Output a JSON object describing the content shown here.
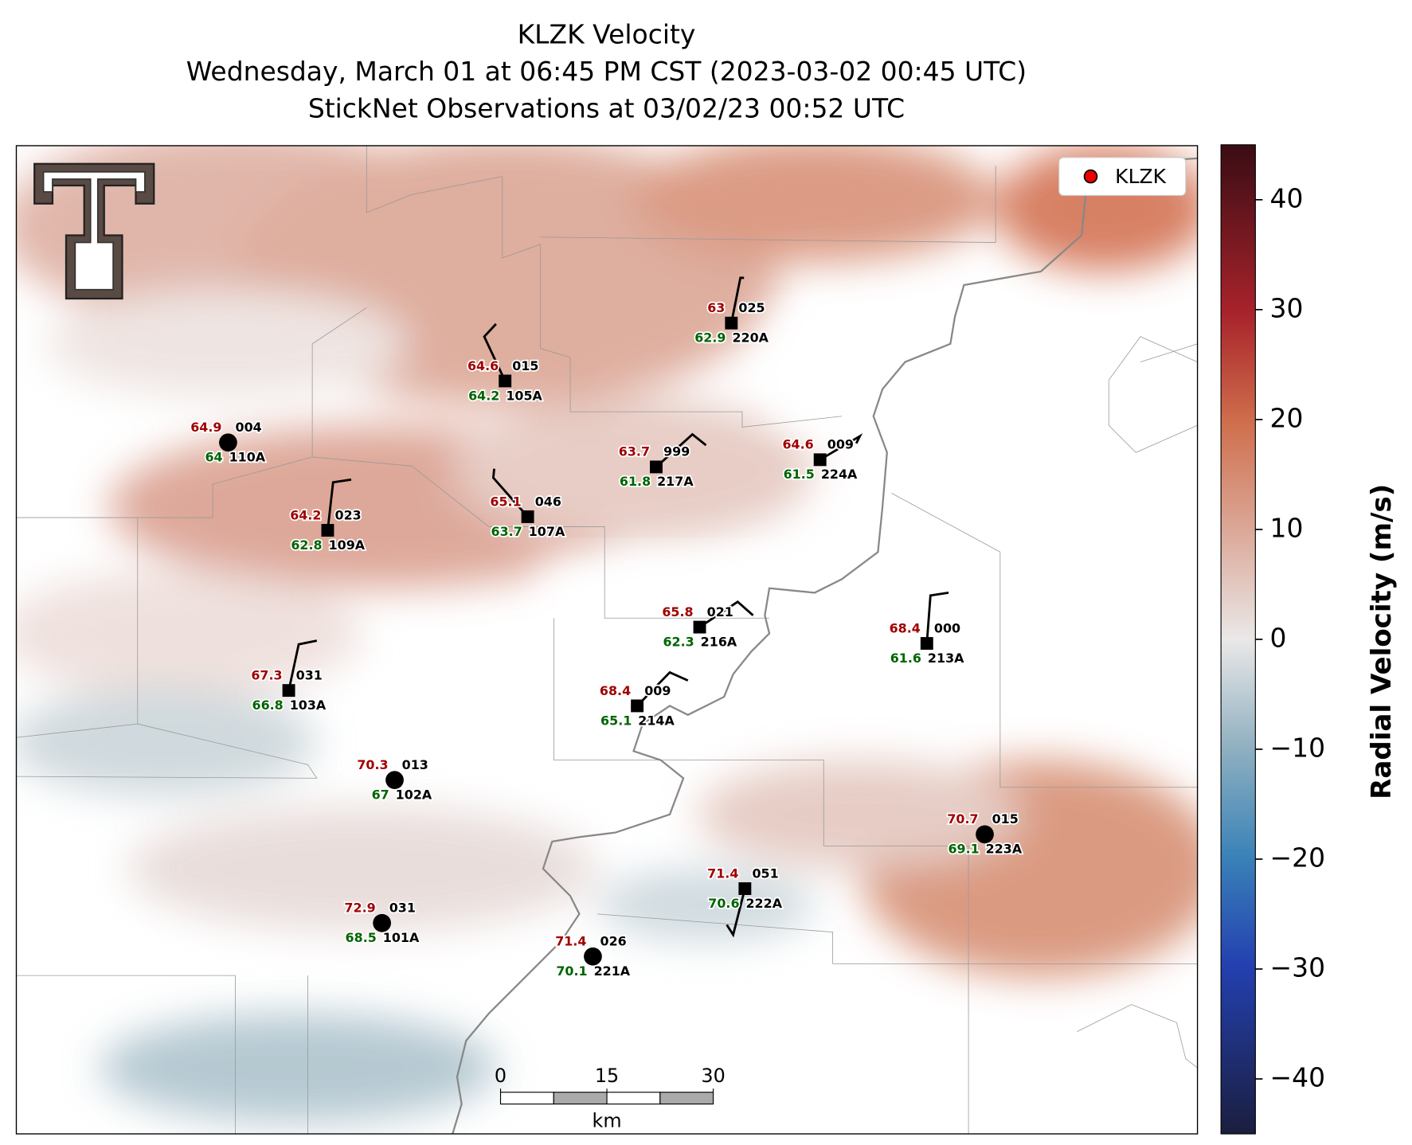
{
  "title_lines": [
    "KLZK Velocity",
    "Wednesday, March 01 at 06:45 PM CST (2023-03-02 00:45 UTC)",
    "StickNet Observations at 03/02/23 00:52 UTC"
  ],
  "legend": {
    "label": "KLZK"
  },
  "colorbar": {
    "label": "Radial Velocity (m/s)",
    "lim": [
      -45,
      45
    ],
    "ticks": [
      {
        "value": -40,
        "label": "−40"
      },
      {
        "value": -30,
        "label": "−30"
      },
      {
        "value": -20,
        "label": "−20"
      },
      {
        "value": -10,
        "label": "−10"
      },
      0,
      10,
      20,
      30,
      40
    ]
  },
  "scale_bar": {
    "ticks": [
      0,
      15,
      30
    ],
    "unit": "km"
  },
  "stations": [
    {
      "id": "110A",
      "temp": 64.9,
      "dewpoint": 64.0,
      "wind": "004"
    },
    {
      "id": "105A",
      "temp": 64.6,
      "dewpoint": 64.2,
      "wind": "015"
    },
    {
      "id": "220A",
      "temp": 63.0,
      "dewpoint": 62.9,
      "wind": "025"
    },
    {
      "id": "109A",
      "temp": 64.2,
      "dewpoint": 62.8,
      "wind": "023"
    },
    {
      "id": "107A",
      "temp": 65.1,
      "dewpoint": 63.7,
      "wind": "046"
    },
    {
      "id": "217A",
      "temp": 63.7,
      "dewpoint": 61.8,
      "wind": "999"
    },
    {
      "id": "224A",
      "temp": 64.6,
      "dewpoint": 61.5,
      "wind": "009"
    },
    {
      "id": "216A",
      "temp": 65.8,
      "dewpoint": 62.3,
      "wind": "021"
    },
    {
      "id": "213A",
      "temp": 68.4,
      "dewpoint": 61.6,
      "wind": "000"
    },
    {
      "id": "103A",
      "temp": 67.3,
      "dewpoint": 66.8,
      "wind": "031"
    },
    {
      "id": "214A",
      "temp": 68.4,
      "dewpoint": 65.1,
      "wind": "009"
    },
    {
      "id": "102A",
      "temp": 70.3,
      "dewpoint": 67.0,
      "wind": "013"
    },
    {
      "id": "223A",
      "temp": 70.7,
      "dewpoint": 69.1,
      "wind": "015"
    },
    {
      "id": "222A",
      "temp": 71.4,
      "dewpoint": 70.6,
      "wind": "051"
    },
    {
      "id": "101A",
      "temp": 72.9,
      "dewpoint": 68.5,
      "wind": "031"
    },
    {
      "id": "221A",
      "temp": 71.4,
      "dewpoint": 70.1,
      "wind": "026"
    }
  ]
}
